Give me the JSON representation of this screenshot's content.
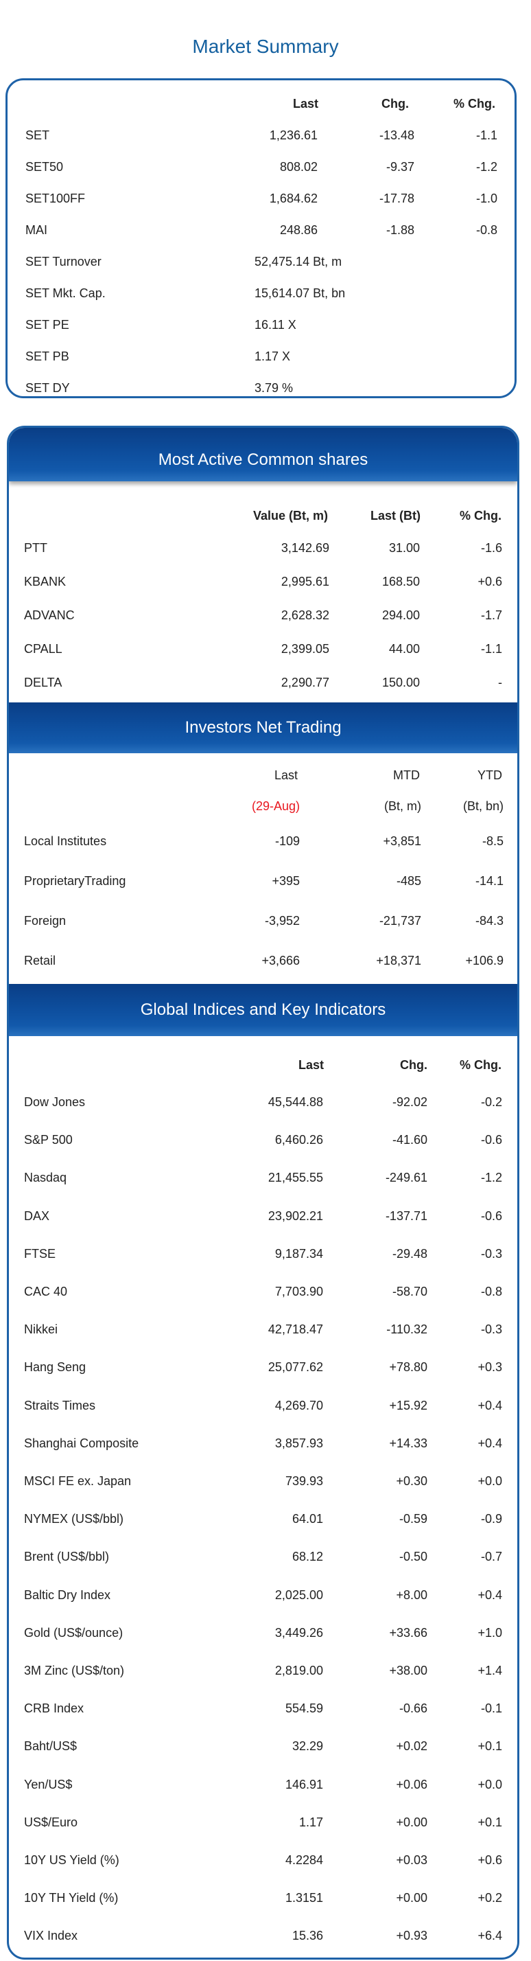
{
  "market_summary": {
    "title": "Market Summary",
    "headers": [
      "Last",
      "Chg.",
      "% Chg."
    ],
    "rows": [
      {
        "name": "SET",
        "last": "1,236.61",
        "chg": "-13.48",
        "pct": "-1.1"
      },
      {
        "name": "SET50",
        "last": "808.02",
        "chg": "-9.37",
        "pct": "-1.2"
      },
      {
        "name": "SET100FF",
        "last": "1,684.62",
        "chg": "-17.78",
        "pct": "-1.0"
      },
      {
        "name": "MAI",
        "last": "248.86",
        "chg": "-1.88",
        "pct": "-0.8"
      }
    ],
    "stats": [
      {
        "name": "SET Turnover",
        "value": "52,475.14 Bt, m"
      },
      {
        "name": "SET Mkt. Cap.",
        "value": "15,614.07 Bt, bn"
      },
      {
        "name": "SET PE",
        "value": "16.11 X"
      },
      {
        "name": "SET PB",
        "value": "1.17 X"
      },
      {
        "name": "SET DY",
        "value": "3.79 %"
      }
    ]
  },
  "most_active": {
    "title": "Most Active Common shares",
    "headers": [
      "Value (Bt, m)",
      "Last (Bt)",
      "% Chg."
    ],
    "rows": [
      {
        "name": "PTT",
        "value": "3,142.69",
        "last": "31.00",
        "pct": "-1.6"
      },
      {
        "name": "KBANK",
        "value": "2,995.61",
        "last": "168.50",
        "pct": "+0.6"
      },
      {
        "name": "ADVANC",
        "value": "2,628.32",
        "last": "294.00",
        "pct": "-1.7"
      },
      {
        "name": "CPALL",
        "value": "2,399.05",
        "last": "44.00",
        "pct": "-1.1"
      },
      {
        "name": "DELTA",
        "value": "2,290.77",
        "last": "150.00",
        "pct": "-"
      }
    ]
  },
  "investors": {
    "title": "Investors Net Trading",
    "headers": [
      "Last",
      "MTD",
      "YTD"
    ],
    "subheaders": [
      "(29-Aug)",
      "(Bt, m)",
      "(Bt, bn)"
    ],
    "rows": [
      {
        "name": "Local Institutes",
        "last": "-109",
        "mtd": "+3,851",
        "ytd": "-8.5"
      },
      {
        "name": "ProprietaryTrading",
        "last": "+395",
        "mtd": "-485",
        "ytd": "-14.1"
      },
      {
        "name": "Foreign",
        "last": "-3,952",
        "mtd": "-21,737",
        "ytd": "-84.3"
      },
      {
        "name": "Retail",
        "last": "+3,666",
        "mtd": "+18,371",
        "ytd": "+106.9"
      }
    ]
  },
  "global": {
    "title": "Global Indices and Key Indicators",
    "headers": [
      "Last",
      "Chg.",
      "% Chg."
    ],
    "rows": [
      {
        "name": "Dow Jones",
        "last": "45,544.88",
        "chg": "-92.02",
        "pct": "-0.2"
      },
      {
        "name": "S&P 500",
        "last": "6,460.26",
        "chg": "-41.60",
        "pct": "-0.6"
      },
      {
        "name": "Nasdaq",
        "last": "21,455.55",
        "chg": "-249.61",
        "pct": "-1.2"
      },
      {
        "name": "DAX",
        "last": "23,902.21",
        "chg": "-137.71",
        "pct": "-0.6"
      },
      {
        "name": "FTSE",
        "last": "9,187.34",
        "chg": "-29.48",
        "pct": "-0.3"
      },
      {
        "name": "CAC 40",
        "last": "7,703.90",
        "chg": "-58.70",
        "pct": "-0.8"
      },
      {
        "name": "Nikkei",
        "last": "42,718.47",
        "chg": "-110.32",
        "pct": "-0.3"
      },
      {
        "name": "Hang Seng",
        "last": "25,077.62",
        "chg": "+78.80",
        "pct": "+0.3"
      },
      {
        "name": "Straits Times",
        "last": "4,269.70",
        "chg": "+15.92",
        "pct": "+0.4"
      },
      {
        "name": "Shanghai Composite",
        "last": "3,857.93",
        "chg": "+14.33",
        "pct": "+0.4"
      },
      {
        "name": "MSCI FE ex. Japan",
        "last": "739.93",
        "chg": "+0.30",
        "pct": "+0.0"
      },
      {
        "name": "NYMEX (US$/bbl)",
        "last": "64.01",
        "chg": "-0.59",
        "pct": "-0.9"
      },
      {
        "name": "Brent (US$/bbl)",
        "last": "68.12",
        "chg": "-0.50",
        "pct": "-0.7"
      },
      {
        "name": "Baltic Dry Index",
        "last": "2,025.00",
        "chg": "+8.00",
        "pct": "+0.4"
      },
      {
        "name": "Gold (US$/ounce)",
        "last": "3,449.26",
        "chg": "+33.66",
        "pct": "+1.0"
      },
      {
        "name": "3M Zinc (US$/ton)",
        "last": "2,819.00",
        "chg": "+38.00",
        "pct": "+1.4"
      },
      {
        "name": "CRB Index",
        "last": "554.59",
        "chg": "-0.66",
        "pct": "-0.1"
      },
      {
        "name": "Baht/US$",
        "last": "32.29",
        "chg": "+0.02",
        "pct": "+0.1"
      },
      {
        "name": "Yen/US$",
        "last": "146.91",
        "chg": "+0.06",
        "pct": "+0.0"
      },
      {
        "name": "US$/Euro",
        "last": "1.17",
        "chg": "+0.00",
        "pct": "+0.1"
      },
      {
        "name": "10Y US Yield (%)",
        "last": "4.2284",
        "chg": "+0.03",
        "pct": "+0.6"
      },
      {
        "name": "10Y TH Yield (%)",
        "last": "1.3151",
        "chg": "+0.00",
        "pct": "+0.2"
      },
      {
        "name": "VIX Index",
        "last": "15.36",
        "chg": "+0.93",
        "pct": "+6.4"
      }
    ]
  },
  "colors": {
    "accent": "#1e62a8",
    "title": "#14609f",
    "highlight": "#e8171f"
  }
}
